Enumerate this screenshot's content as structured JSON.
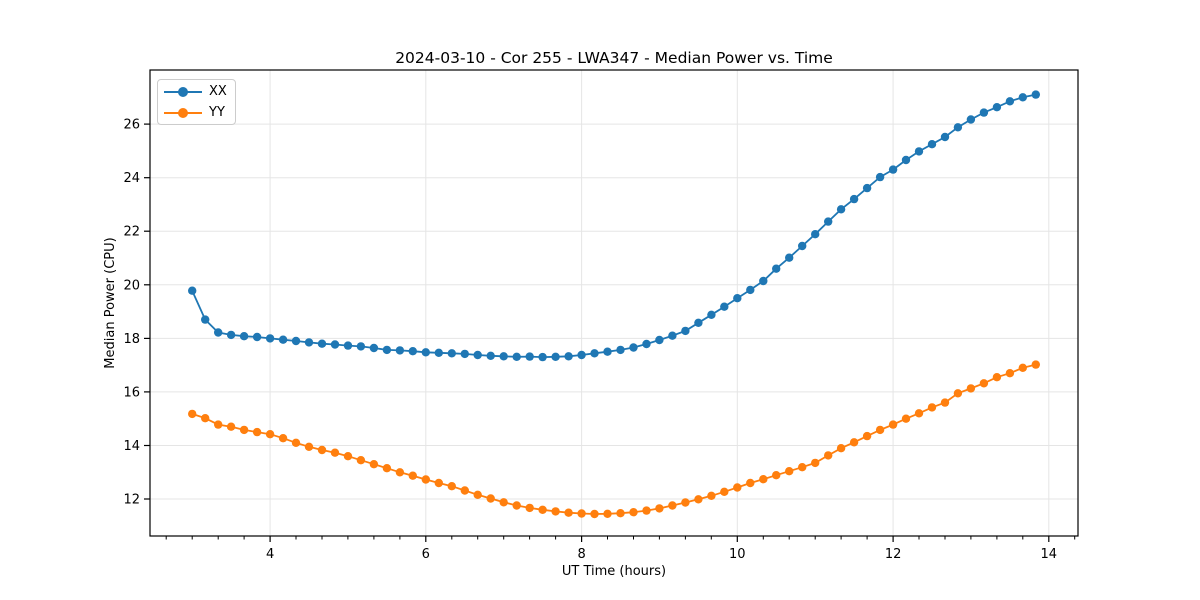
{
  "chart_data": {
    "type": "line",
    "title": "2024-03-10 - Cor 255 - LWA347 - Median Power vs. Time",
    "xlabel": "UT Time (hours)",
    "ylabel": "Median Power (CPU)",
    "xlim": [
      2.458,
      14.375
    ],
    "ylim": [
      10.62,
      28.02
    ],
    "x_ticks": [
      4,
      6,
      8,
      10,
      12,
      14
    ],
    "x_minor_tick_interval": 0.33333,
    "y_ticks": [
      12,
      14,
      16,
      18,
      20,
      22,
      24,
      26
    ],
    "grid": true,
    "grid_color": "#e5e5e5",
    "spine_color": "#000000",
    "legend_position": "upper left",
    "x_start": 3.0,
    "x_step": 0.1666667,
    "series": [
      {
        "name": "XX",
        "color": "#1f77b4",
        "values": [
          19.78,
          18.7,
          18.22,
          18.13,
          18.08,
          18.05,
          18.0,
          17.95,
          17.9,
          17.85,
          17.8,
          17.77,
          17.73,
          17.7,
          17.64,
          17.57,
          17.55,
          17.52,
          17.48,
          17.46,
          17.44,
          17.42,
          17.38,
          17.35,
          17.33,
          17.31,
          17.32,
          17.3,
          17.31,
          17.33,
          17.38,
          17.44,
          17.5,
          17.57,
          17.66,
          17.79,
          17.94,
          18.1,
          18.28,
          18.58,
          18.88,
          19.18,
          19.5,
          19.81,
          20.14,
          20.6,
          21.01,
          21.45,
          21.89,
          22.36,
          22.82,
          23.2,
          23.61,
          24.02,
          24.3,
          24.66,
          24.98,
          25.25,
          25.52,
          25.88,
          26.17,
          26.43,
          26.63,
          26.85,
          27.0,
          27.1
        ]
      },
      {
        "name": "YY",
        "color": "#ff7f0e",
        "values": [
          15.18,
          15.02,
          14.78,
          14.7,
          14.58,
          14.5,
          14.42,
          14.27,
          14.1,
          13.95,
          13.83,
          13.73,
          13.6,
          13.45,
          13.3,
          13.15,
          13.0,
          12.87,
          12.73,
          12.6,
          12.48,
          12.32,
          12.16,
          12.02,
          11.88,
          11.76,
          11.67,
          11.6,
          11.54,
          11.49,
          11.46,
          11.44,
          11.45,
          11.47,
          11.51,
          11.57,
          11.65,
          11.76,
          11.87,
          11.99,
          12.12,
          12.27,
          12.43,
          12.6,
          12.74,
          12.89,
          13.04,
          13.19,
          13.35,
          13.63,
          13.9,
          14.12,
          14.35,
          14.58,
          14.78,
          15.0,
          15.2,
          15.42,
          15.6,
          15.95,
          16.13,
          16.32,
          16.55,
          16.7,
          16.9,
          17.02
        ]
      }
    ]
  }
}
